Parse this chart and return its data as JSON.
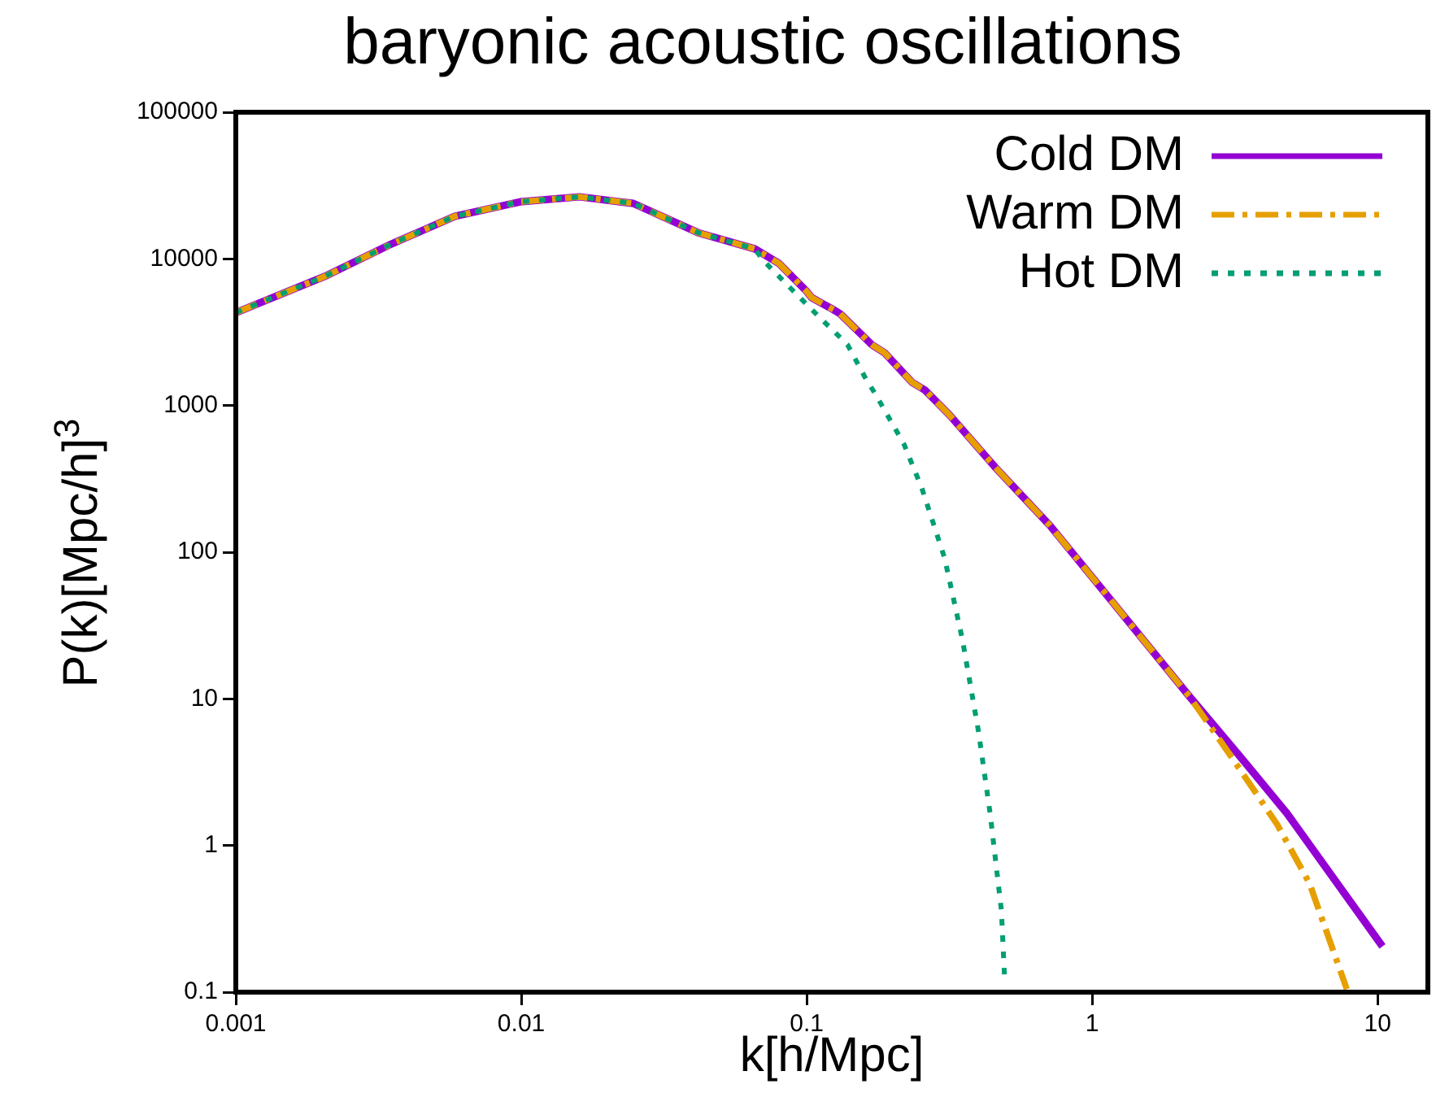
{
  "chart_data": {
    "type": "line",
    "title": "baryonic acoustic oscillations",
    "xlabel": "k[h/Mpc]",
    "ylabel": "P(k)[Mpc/h]$^{3}$",
    "log": "xy",
    "xlim": [
      0.001,
      15
    ],
    "ylim": [
      0.1,
      100000
    ],
    "xticks": [
      0.001,
      0.01,
      0.1,
      1,
      10
    ],
    "yticks": [
      0.1,
      1,
      10,
      100,
      1000,
      10000,
      100000
    ],
    "grid": false,
    "legend": "top right",
    "marker": "none",
    "series": [
      {
        "name": "Cold DM",
        "color": "#9400d3",
        "line_style": "solid",
        "x": [
          0.001,
          0.00205,
          0.0035,
          0.00585,
          0.0099,
          0.016,
          0.0247,
          0.0416,
          0.0658,
          0.08,
          0.1,
          0.104,
          0.123,
          0.131,
          0.169,
          0.1875,
          0.234,
          0.26,
          0.316,
          0.456,
          0.711,
          1.14,
          2.19,
          3.12,
          4.81,
          10.4
        ],
        "values": [
          4300,
          7600,
          12600,
          19500,
          24500,
          26500,
          23900,
          15100,
          11700,
          9300,
          6000,
          5450,
          4550,
          4220,
          2600,
          2290,
          1440,
          1270,
          865,
          382,
          152,
          49.5,
          10.4,
          4.6,
          1.66,
          0.205
        ]
      },
      {
        "name": "Warm DM",
        "color": "#e69f00",
        "line_style": "dashdot",
        "x": [
          0.001,
          0.00205,
          0.0035,
          0.00585,
          0.0099,
          0.016,
          0.0247,
          0.0416,
          0.0658,
          0.08,
          0.1,
          0.104,
          0.123,
          0.131,
          0.169,
          0.1875,
          0.234,
          0.26,
          0.316,
          0.456,
          0.711,
          1.14,
          2.19,
          3.12,
          4.45,
          5.77,
          7.8
        ],
        "values": [
          4300,
          7600,
          12600,
          19500,
          24500,
          26500,
          23900,
          15100,
          11700,
          9300,
          6000,
          5450,
          4550,
          4220,
          2600,
          2290,
          1440,
          1270,
          865,
          382,
          152,
          49.5,
          10.4,
          3.86,
          1.39,
          0.553,
          0.105
        ]
      },
      {
        "name": "Hot DM",
        "color": "#009e73",
        "line_style": "dotted",
        "x": [
          0.001,
          0.00205,
          0.0035,
          0.00585,
          0.0099,
          0.016,
          0.0247,
          0.0416,
          0.0658,
          0.0703,
          0.0877,
          0.111,
          0.139,
          0.16,
          0.175,
          0.219,
          0.253,
          0.304,
          0.351,
          0.4,
          0.439,
          0.481,
          0.493
        ],
        "values": [
          4300,
          7600,
          12600,
          19500,
          24500,
          26500,
          23900,
          15100,
          11700,
          9800,
          6320,
          3990,
          2600,
          1560,
          1175,
          547,
          274,
          91.5,
          25.5,
          5.96,
          1.66,
          0.359,
          0.129
        ]
      }
    ]
  }
}
